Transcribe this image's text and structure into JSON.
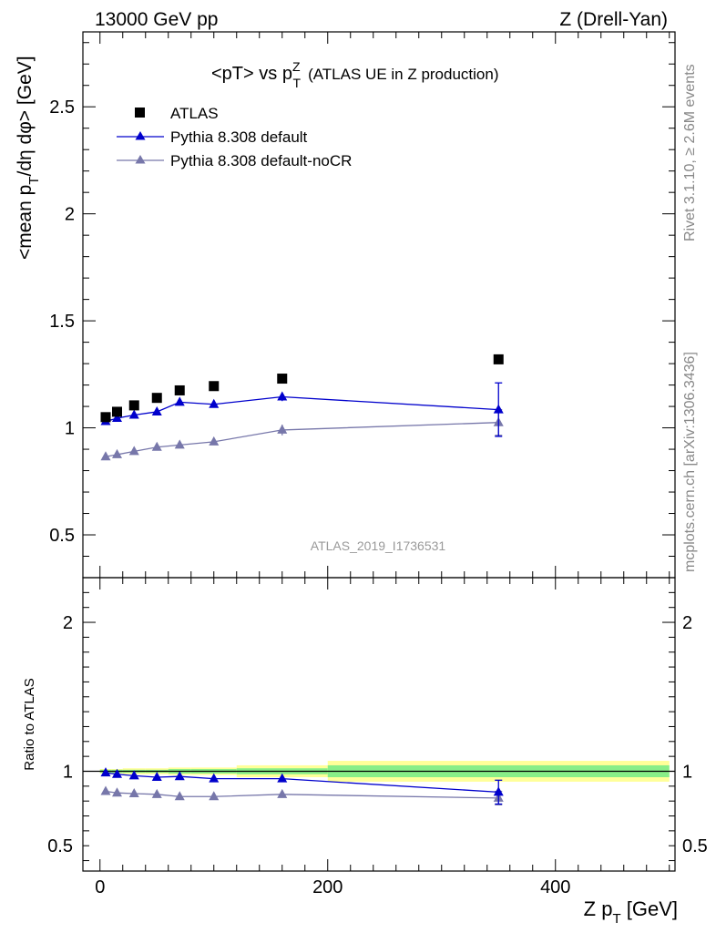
{
  "header": {
    "left": "13000 GeV pp",
    "right": "Z (Drell-Yan)"
  },
  "side_labels": {
    "rivet": "Rivet 3.1.10, ≥ 2.6M events",
    "mcplots": "mcplots.cern.ch [arXiv:1306.3436]"
  },
  "colors": {
    "atlas": "#000000",
    "pythia_default": "#0000cc",
    "pythia_nocr": "#7777aa",
    "band_inner": "#88ee88",
    "band_outer": "#ffff99"
  },
  "chart_data": [
    {
      "type": "scatter",
      "panel": "main",
      "title_main": "<pT> vs p",
      "title_sup": "Z",
      "title_sub": "T",
      "title_suffix": "(ATLAS UE in Z production)",
      "watermark": "ATLAS_2019_I1736531",
      "ylabel_main": "<mean p",
      "ylabel_sub": "T",
      "ylabel_rest": "/dη dφ> [GeV]",
      "xlim": [
        -15,
        505
      ],
      "ylim": [
        0.3,
        2.85
      ],
      "yticks": [
        0.5,
        1,
        1.5,
        2,
        2.5
      ],
      "ytick_labels": [
        "0.5",
        "1",
        "1.5",
        "2",
        "2.5"
      ],
      "legend_position": "top-left",
      "series": [
        {
          "name": "ATLAS",
          "marker": "square",
          "x": [
            5,
            15,
            30,
            50,
            70,
            100,
            160,
            350
          ],
          "y": [
            1.05,
            1.075,
            1.105,
            1.14,
            1.175,
            1.195,
            1.23,
            1.32
          ]
        },
        {
          "name": "Pythia 8.308 default",
          "marker": "triangle",
          "x": [
            5,
            15,
            30,
            50,
            70,
            100,
            160,
            350
          ],
          "y": [
            1.03,
            1.045,
            1.06,
            1.075,
            1.12,
            1.11,
            1.145,
            1.085
          ],
          "err": [
            0.015,
            0.01,
            0.01,
            0.01,
            0.01,
            0.01,
            0.02,
            0.125
          ]
        },
        {
          "name": "Pythia 8.308 default-noCR",
          "marker": "triangle",
          "x": [
            5,
            15,
            30,
            50,
            70,
            100,
            160,
            350
          ],
          "y": [
            0.865,
            0.875,
            0.89,
            0.91,
            0.92,
            0.935,
            0.99,
            1.025
          ],
          "err": [
            0.008,
            0.008,
            0.008,
            0.008,
            0.008,
            0.008,
            0.025,
            0.06
          ]
        }
      ]
    },
    {
      "type": "scatter",
      "panel": "ratio",
      "ylabel": "Ratio to ATLAS",
      "xlabel_main": "Z p",
      "xlabel_sub": "T",
      "xlabel_rest": " [GeV]",
      "xlim": [
        -15,
        505
      ],
      "ylim": [
        0.33,
        2.3
      ],
      "xticks": [
        0,
        200,
        400
      ],
      "xtick_labels": [
        "0",
        "200",
        "400"
      ],
      "yticks": [
        0.5,
        1,
        2
      ],
      "ytick_labels": [
        "0.5",
        "1",
        "2"
      ],
      "bands": [
        {
          "x0": 0,
          "x1": 10,
          "inner": [
            0.99,
            1.01
          ],
          "outer": [
            0.985,
            1.015
          ]
        },
        {
          "x0": 10,
          "x1": 20,
          "inner": [
            0.99,
            1.01
          ],
          "outer": [
            0.985,
            1.015
          ]
        },
        {
          "x0": 20,
          "x1": 40,
          "inner": [
            0.99,
            1.01
          ],
          "outer": [
            0.98,
            1.02
          ]
        },
        {
          "x0": 40,
          "x1": 60,
          "inner": [
            0.99,
            1.01
          ],
          "outer": [
            0.98,
            1.02
          ]
        },
        {
          "x0": 60,
          "x1": 80,
          "inner": [
            0.985,
            1.015
          ],
          "outer": [
            0.975,
            1.025
          ]
        },
        {
          "x0": 80,
          "x1": 120,
          "inner": [
            0.985,
            1.015
          ],
          "outer": [
            0.975,
            1.025
          ]
        },
        {
          "x0": 120,
          "x1": 200,
          "inner": [
            0.98,
            1.02
          ],
          "outer": [
            0.96,
            1.04
          ]
        },
        {
          "x0": 200,
          "x1": 500,
          "inner": [
            0.96,
            1.04
          ],
          "outer": [
            0.93,
            1.07
          ]
        }
      ],
      "series": [
        {
          "name": "Pythia 8.308 default",
          "marker": "triangle",
          "x": [
            5,
            15,
            30,
            50,
            70,
            100,
            160,
            350
          ],
          "y": [
            0.99,
            0.98,
            0.97,
            0.96,
            0.965,
            0.95,
            0.95,
            0.86
          ],
          "err": [
            0.012,
            0.01,
            0.01,
            0.01,
            0.01,
            0.01,
            0.015,
            0.08
          ]
        },
        {
          "name": "Pythia 8.308 default-noCR",
          "marker": "triangle",
          "x": [
            5,
            15,
            30,
            50,
            70,
            100,
            160,
            350
          ],
          "y": [
            0.865,
            0.855,
            0.85,
            0.845,
            0.83,
            0.83,
            0.845,
            0.82
          ],
          "err": [
            0.008,
            0.008,
            0.008,
            0.008,
            0.008,
            0.008,
            0.02,
            0.045
          ]
        }
      ]
    }
  ]
}
